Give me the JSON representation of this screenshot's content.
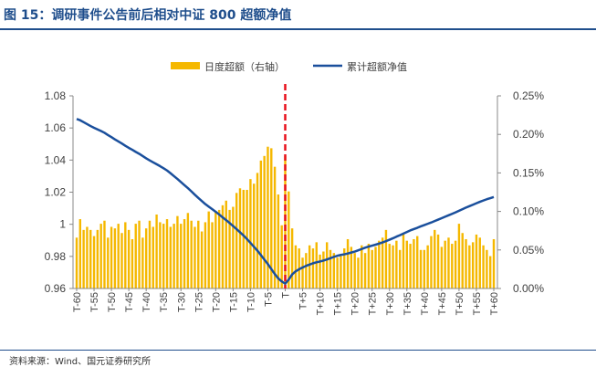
{
  "header": {
    "title": "图 15：调研事件公告前后相对中证 800 超额净值"
  },
  "footer": {
    "source": "资料来源：Wind、国元证券研究所"
  },
  "colors": {
    "bar": "#f5b800",
    "line": "#1a4f9c",
    "marker": "#e8101c",
    "axis": "#888888",
    "text": "#404040"
  },
  "chart_data": {
    "type": "bar+line",
    "x_tick_labels": [
      "T-60",
      "T-55",
      "T-50",
      "T-45",
      "T-40",
      "T-35",
      "T-30",
      "T-25",
      "T-20",
      "T-15",
      "T-10",
      "T-5",
      "T",
      "T+5",
      "T+10",
      "T+15",
      "T+20",
      "T+25",
      "T+30",
      "T+35",
      "T+40",
      "T+45",
      "T+50",
      "T+55",
      "T+60"
    ],
    "x": [
      -60,
      -59,
      -58,
      -57,
      -56,
      -55,
      -54,
      -53,
      -52,
      -51,
      -50,
      -49,
      -48,
      -47,
      -46,
      -45,
      -44,
      -43,
      -42,
      -41,
      -40,
      -39,
      -38,
      -37,
      -36,
      -35,
      -34,
      -33,
      -32,
      -31,
      -30,
      -29,
      -28,
      -27,
      -26,
      -25,
      -24,
      -23,
      -22,
      -21,
      -20,
      -19,
      -18,
      -17,
      -16,
      -15,
      -14,
      -13,
      -12,
      -11,
      -10,
      -9,
      -8,
      -7,
      -6,
      -5,
      -4,
      -3,
      -2,
      -1,
      0,
      1,
      2,
      3,
      4,
      5,
      6,
      7,
      8,
      9,
      10,
      11,
      12,
      13,
      14,
      15,
      16,
      17,
      18,
      19,
      20,
      21,
      22,
      23,
      24,
      25,
      26,
      27,
      28,
      29,
      30,
      31,
      32,
      33,
      34,
      35,
      36,
      37,
      38,
      39,
      40,
      41,
      42,
      43,
      44,
      45,
      46,
      47,
      48,
      49,
      50,
      51,
      52,
      53,
      54,
      55,
      56,
      57,
      58,
      59,
      60
    ],
    "series": [
      {
        "name": "日度超额（右轴）",
        "type": "bar",
        "axis": "right",
        "values": [
          0.066,
          0.09,
          0.076,
          0.08,
          0.076,
          0.068,
          0.076,
          0.084,
          0.088,
          0.066,
          0.08,
          0.078,
          0.084,
          0.072,
          0.086,
          0.076,
          0.064,
          0.084,
          0.088,
          0.066,
          0.078,
          0.088,
          0.08,
          0.096,
          0.086,
          0.084,
          0.09,
          0.08,
          0.084,
          0.094,
          0.084,
          0.09,
          0.098,
          0.088,
          0.08,
          0.088,
          0.074,
          0.086,
          0.1,
          0.086,
          0.1,
          0.102,
          0.108,
          0.114,
          0.102,
          0.106,
          0.124,
          0.13,
          0.128,
          0.128,
          0.142,
          0.136,
          0.15,
          0.166,
          0.172,
          0.184,
          0.182,
          0.158,
          0.122,
          0.082,
          0.172,
          0.126,
          0.078,
          0.056,
          0.052,
          0.04,
          0.046,
          0.056,
          0.052,
          0.06,
          0.044,
          0.048,
          0.06,
          0.05,
          0.046,
          0.04,
          0.042,
          0.052,
          0.064,
          0.054,
          0.046,
          0.04,
          0.056,
          0.046,
          0.058,
          0.05,
          0.054,
          0.062,
          0.066,
          0.076,
          0.058,
          0.056,
          0.062,
          0.05,
          0.07,
          0.062,
          0.058,
          0.064,
          0.068,
          0.05,
          0.05,
          0.056,
          0.068,
          0.076,
          0.07,
          0.054,
          0.062,
          0.066,
          0.058,
          0.062,
          0.084,
          0.072,
          0.064,
          0.056,
          0.06,
          0.07,
          0.066,
          0.056,
          0.05,
          0.042,
          0.064
        ]
      },
      {
        "name": "累计超额净值",
        "type": "line",
        "axis": "left",
        "values": [
          1.0656,
          1.0648,
          1.0636,
          1.0624,
          1.0612,
          1.0601,
          1.0591,
          1.0581,
          1.057,
          1.0556,
          1.0543,
          1.0529,
          1.0516,
          1.0503,
          1.0489,
          1.0476,
          1.0464,
          1.0451,
          1.0439,
          1.0425,
          1.0411,
          1.0398,
          1.0386,
          1.0374,
          1.0362,
          1.0349,
          1.0335,
          1.0318,
          1.03,
          1.0282,
          1.0263,
          1.0244,
          1.0225,
          1.0205,
          1.0184,
          1.0164,
          1.0145,
          1.0126,
          1.011,
          1.0094,
          1.0078,
          1.0061,
          1.0043,
          1.0026,
          1.0008,
          0.9989,
          0.997,
          0.995,
          0.993,
          0.9908,
          0.9884,
          0.986,
          0.9836,
          0.9808,
          0.978,
          0.9752,
          0.9721,
          0.969,
          0.9663,
          0.9644,
          0.963,
          0.9655,
          0.9688,
          0.9707,
          0.972,
          0.9731,
          0.9741,
          0.9749,
          0.9757,
          0.9763,
          0.9768,
          0.9774,
          0.9781,
          0.9789,
          0.9797,
          0.9804,
          0.9809,
          0.9813,
          0.9818,
          0.9824,
          0.983,
          0.9838,
          0.9846,
          0.9854,
          0.9861,
          0.9867,
          0.9873,
          0.988,
          0.9887,
          0.9895,
          0.9904,
          0.9913,
          0.9923,
          0.9932,
          0.9942,
          0.9952,
          0.9962,
          0.997,
          0.9978,
          0.9987,
          0.9995,
          1.0003,
          1.0011,
          1.002,
          1.0029,
          1.0038,
          1.0047,
          1.0056,
          1.0065,
          1.0074,
          1.0084,
          1.0094,
          1.0104,
          1.0113,
          1.0122,
          1.0131,
          1.014,
          1.0148,
          1.0156,
          1.0163,
          1.017
        ]
      }
    ],
    "y_left": {
      "min": 0.96,
      "max": 1.08,
      "ticks": [
        0.96,
        0.98,
        1,
        1.02,
        1.04,
        1.06,
        1.08
      ],
      "tick_labels": [
        "0.96",
        "0.98",
        "1",
        "1.02",
        "1.04",
        "1.06",
        "1.08"
      ]
    },
    "y_right": {
      "min": 0,
      "max": 0.25,
      "ticks": [
        0,
        0.05,
        0.1,
        0.15,
        0.2,
        0.25
      ],
      "tick_labels": [
        "0.00%",
        "0.05%",
        "0.10%",
        "0.15%",
        "0.20%",
        "0.25%"
      ]
    },
    "event_marker_x": 0,
    "legend_position": "top-center",
    "grid": false
  }
}
